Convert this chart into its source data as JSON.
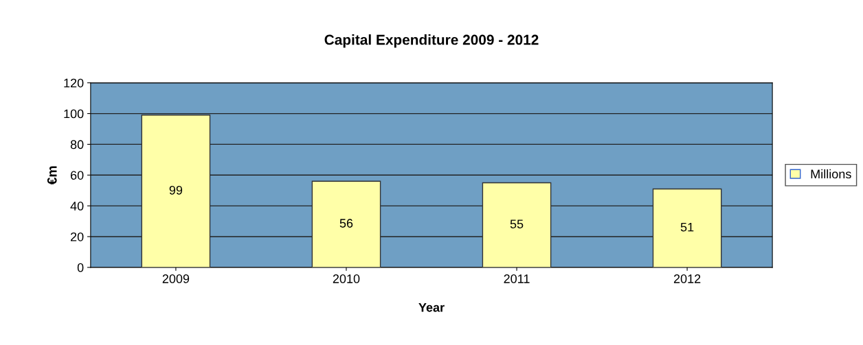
{
  "chart_data": {
    "type": "bar",
    "title": "Capital Expenditure 2009 - 2012",
    "xlabel": "Year",
    "ylabel": "€m",
    "categories": [
      "2009",
      "2010",
      "2011",
      "2012"
    ],
    "series": [
      {
        "name": "Millions",
        "color": "#ffffa8",
        "values": [
          99,
          56,
          55,
          51
        ]
      }
    ],
    "ylim": [
      0,
      120
    ],
    "yticks": [
      0,
      20,
      40,
      60,
      80,
      100,
      120
    ],
    "grid": "y",
    "legend": "right",
    "data_labels": true
  }
}
